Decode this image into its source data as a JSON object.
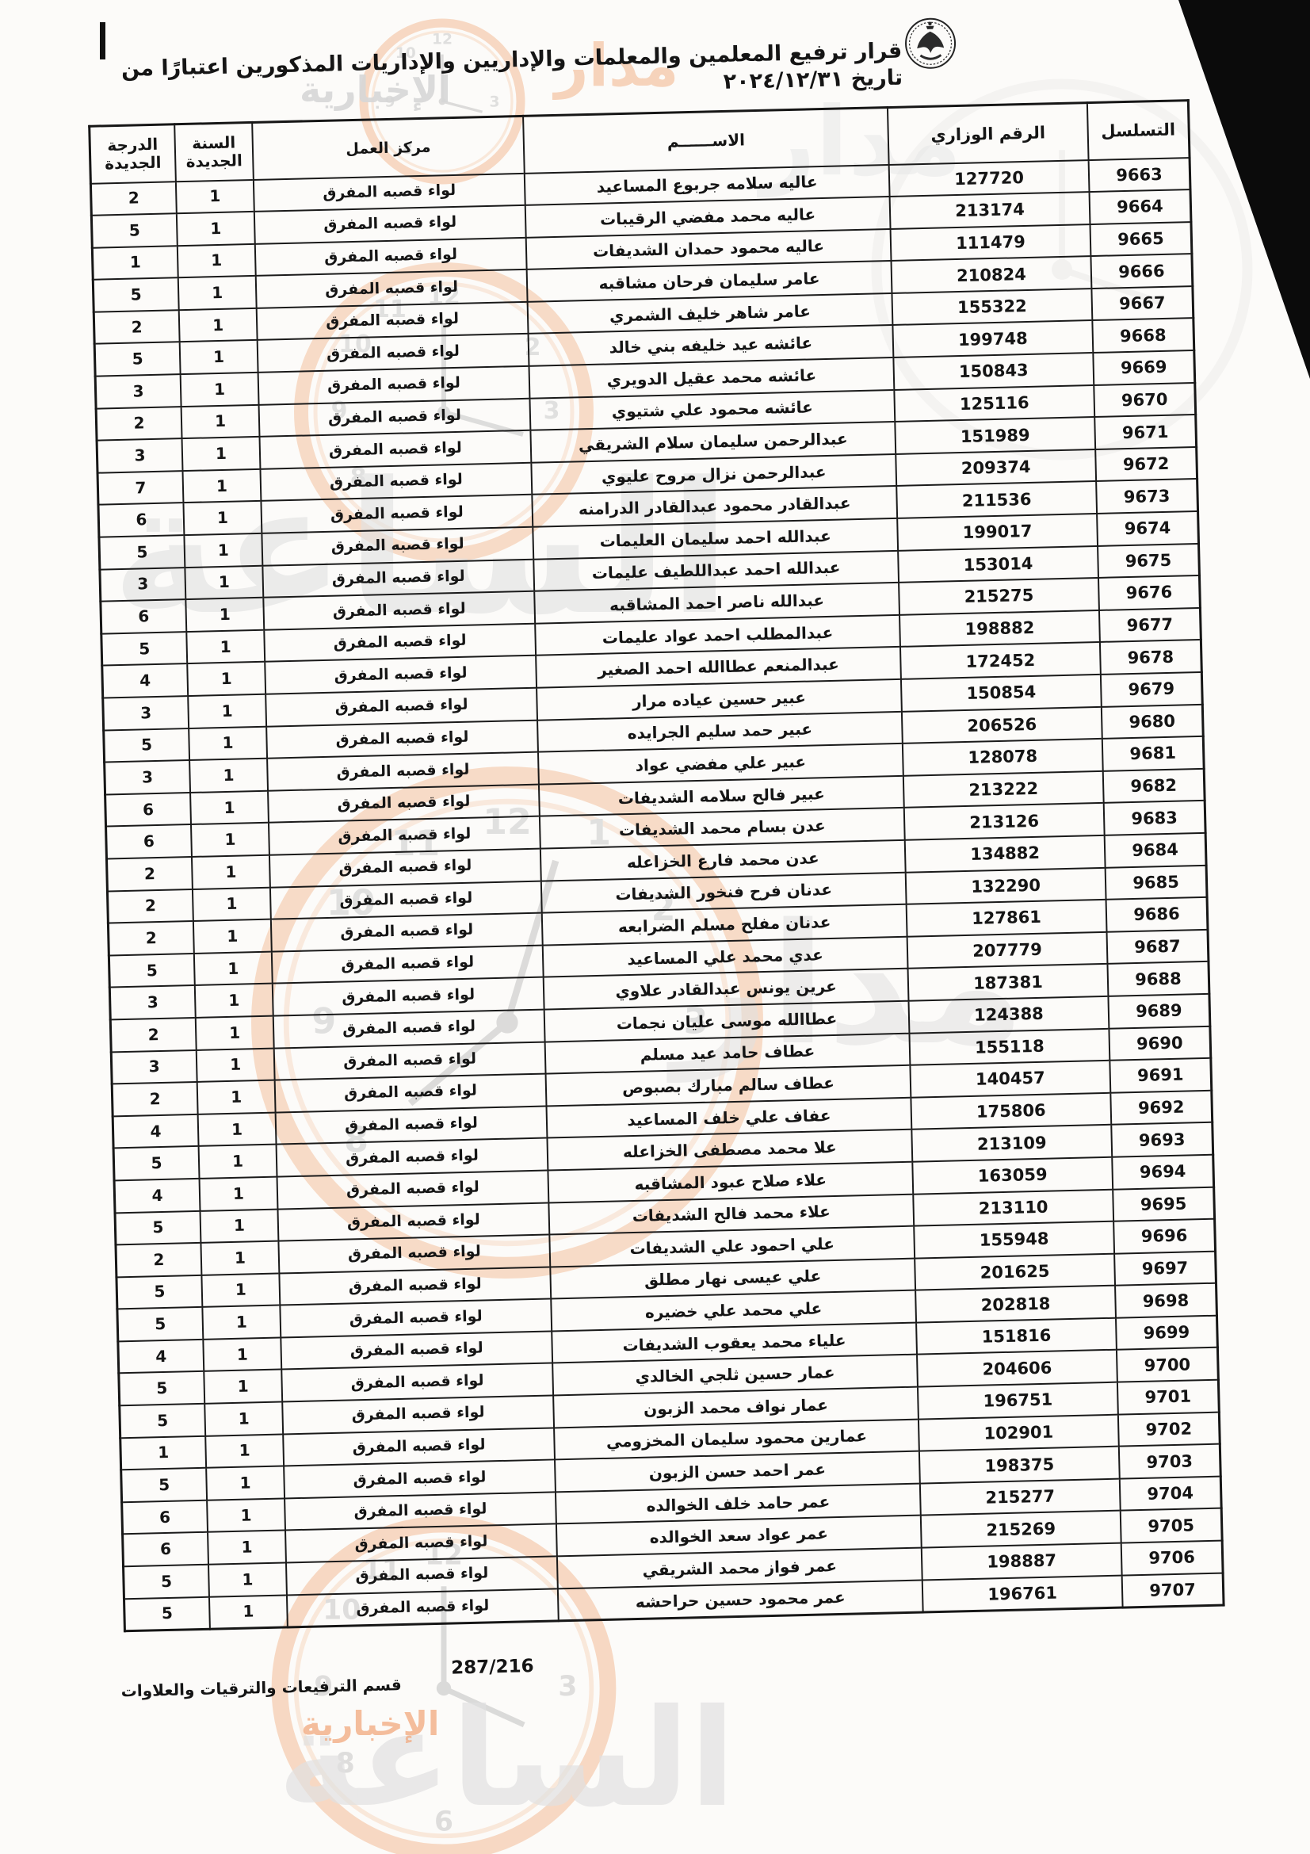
{
  "document": {
    "title": "قرار ترفيع المعلمين والمعلمات والإداريين والإداريات المذكورين اعتبارًا من تاريخ ٢٠٢٤/١٢/٣١",
    "logo": "jordan-coat-of-arms-stamp",
    "footer": {
      "department": "قسم الترفيعات والترقيات والعلاوات",
      "page_number": "287/216"
    },
    "watermark": {
      "brand": "مدار الساعة",
      "secondary": "الإخبارية",
      "brand_word1": "مدار",
      "brand_word2": "الساعة"
    },
    "colors": {
      "watermark_orange": "#f3bd97",
      "watermark_gray": "#dedede",
      "ink": "#151515"
    }
  },
  "table": {
    "headers": {
      "serial": "التسلسل",
      "ministry_number": "الرقم الوزاري",
      "name": "الاســــــم",
      "work_center": "مركز العمل",
      "new_year_line1": "السنة",
      "new_year_line2": "الجديدة",
      "new_grade_line1": "الدرجة",
      "new_grade_line2": "الجديدة"
    },
    "rows": [
      {
        "serial": "9663",
        "ministry": "127720",
        "name": "عاليه سلامه جربوع المساعيد",
        "center": "لواء قصبه المفرق",
        "year": "1",
        "grade": "2"
      },
      {
        "serial": "9664",
        "ministry": "213174",
        "name": "عاليه محمد مفضي الرقيبات",
        "center": "لواء قصبه المفرق",
        "year": "1",
        "grade": "5"
      },
      {
        "serial": "9665",
        "ministry": "111479",
        "name": "عاليه محمود حمدان الشديفات",
        "center": "لواء قصبه المفرق",
        "year": "1",
        "grade": "1"
      },
      {
        "serial": "9666",
        "ministry": "210824",
        "name": "عامر سليمان فرحان مشاقبه",
        "center": "لواء قصبه المفرق",
        "year": "1",
        "grade": "5"
      },
      {
        "serial": "9667",
        "ministry": "155322",
        "name": "عامر شاهر خليف الشمري",
        "center": "لواء قصبه المفرق",
        "year": "1",
        "grade": "2"
      },
      {
        "serial": "9668",
        "ministry": "199748",
        "name": "عائشه عيد خليفه بني خالد",
        "center": "لواء قصبه المفرق",
        "year": "1",
        "grade": "5"
      },
      {
        "serial": "9669",
        "ministry": "150843",
        "name": "عائشه محمد عقيل الدويري",
        "center": "لواء قصبه المفرق",
        "year": "1",
        "grade": "3"
      },
      {
        "serial": "9670",
        "ministry": "125116",
        "name": "عائشه محمود علي شتيوي",
        "center": "لواء قصبه المفرق",
        "year": "1",
        "grade": "2"
      },
      {
        "serial": "9671",
        "ministry": "151989",
        "name": "عبدالرحمن سليمان سلام الشريقي",
        "center": "لواء قصبه المفرق",
        "year": "1",
        "grade": "3"
      },
      {
        "serial": "9672",
        "ministry": "209374",
        "name": "عبدالرحمن نزال مروح عليوي",
        "center": "لواء قصبه المفرق",
        "year": "1",
        "grade": "7"
      },
      {
        "serial": "9673",
        "ministry": "211536",
        "name": "عبدالقادر محمود عبدالقادر الدرامنه",
        "center": "لواء قصبه المفرق",
        "year": "1",
        "grade": "6"
      },
      {
        "serial": "9674",
        "ministry": "199017",
        "name": "عبدالله احمد سليمان العليمات",
        "center": "لواء قصبه المفرق",
        "year": "1",
        "grade": "5"
      },
      {
        "serial": "9675",
        "ministry": "153014",
        "name": "عبدالله احمد عبداللطيف عليمات",
        "center": "لواء قصبه المفرق",
        "year": "1",
        "grade": "3"
      },
      {
        "serial": "9676",
        "ministry": "215275",
        "name": "عبدالله ناصر احمد المشاقبه",
        "center": "لواء قصبه المفرق",
        "year": "1",
        "grade": "6"
      },
      {
        "serial": "9677",
        "ministry": "198882",
        "name": "عبدالمطلب احمد عواد عليمات",
        "center": "لواء قصبه المفرق",
        "year": "1",
        "grade": "5"
      },
      {
        "serial": "9678",
        "ministry": "172452",
        "name": "عبدالمنعم عطاالله احمد الصغير",
        "center": "لواء قصبه المفرق",
        "year": "1",
        "grade": "4"
      },
      {
        "serial": "9679",
        "ministry": "150854",
        "name": "عبير حسين عياده مرار",
        "center": "لواء قصبه المفرق",
        "year": "1",
        "grade": "3"
      },
      {
        "serial": "9680",
        "ministry": "206526",
        "name": "عبير حمد سليم الجرايده",
        "center": "لواء قصبه المفرق",
        "year": "1",
        "grade": "5"
      },
      {
        "serial": "9681",
        "ministry": "128078",
        "name": "عبير علي مفضي عواد",
        "center": "لواء قصبه المفرق",
        "year": "1",
        "grade": "3"
      },
      {
        "serial": "9682",
        "ministry": "213222",
        "name": "عبير فالح سلامه الشديفات",
        "center": "لواء قصبه المفرق",
        "year": "1",
        "grade": "6"
      },
      {
        "serial": "9683",
        "ministry": "213126",
        "name": "عدن بسام محمد الشديفات",
        "center": "لواء قصبه المفرق",
        "year": "1",
        "grade": "6"
      },
      {
        "serial": "9684",
        "ministry": "134882",
        "name": "عدن محمد فارع الخزاعله",
        "center": "لواء قصبه المفرق",
        "year": "1",
        "grade": "2"
      },
      {
        "serial": "9685",
        "ministry": "132290",
        "name": "عدنان فرح فنخور الشديفات",
        "center": "لواء قصبه المفرق",
        "year": "1",
        "grade": "2"
      },
      {
        "serial": "9686",
        "ministry": "127861",
        "name": "عدنان مفلح مسلم الضرابعه",
        "center": "لواء قصبه المفرق",
        "year": "1",
        "grade": "2"
      },
      {
        "serial": "9687",
        "ministry": "207779",
        "name": "عدي محمد علي المساعيد",
        "center": "لواء قصبه المفرق",
        "year": "1",
        "grade": "5"
      },
      {
        "serial": "9688",
        "ministry": "187381",
        "name": "عرين يونس عبدالقادر علاوي",
        "center": "لواء قصبه المفرق",
        "year": "1",
        "grade": "3"
      },
      {
        "serial": "9689",
        "ministry": "124388",
        "name": "عطاالله موسى عليان نجمات",
        "center": "لواء قصبه المفرق",
        "year": "1",
        "grade": "2"
      },
      {
        "serial": "9690",
        "ministry": "155118",
        "name": "عطاف حامد عيد مسلم",
        "center": "لواء قصبه المفرق",
        "year": "1",
        "grade": "3"
      },
      {
        "serial": "9691",
        "ministry": "140457",
        "name": "عطاف سالم مبارك بصبوص",
        "center": "لواء قصبه المفرق",
        "year": "1",
        "grade": "2"
      },
      {
        "serial": "9692",
        "ministry": "175806",
        "name": "عفاف علي خلف المساعيد",
        "center": "لواء قصبه المفرق",
        "year": "1",
        "grade": "4"
      },
      {
        "serial": "9693",
        "ministry": "213109",
        "name": "علا محمد مصطفى الخزاعله",
        "center": "لواء قصبه المفرق",
        "year": "1",
        "grade": "5"
      },
      {
        "serial": "9694",
        "ministry": "163059",
        "name": "علاء صلاح عبود المشاقبه",
        "center": "لواء قصبه المفرق",
        "year": "1",
        "grade": "4"
      },
      {
        "serial": "9695",
        "ministry": "213110",
        "name": "علاء محمد فالح الشديفات",
        "center": "لواء قصبه المفرق",
        "year": "1",
        "grade": "5"
      },
      {
        "serial": "9696",
        "ministry": "155948",
        "name": "علي احمود علي الشديفات",
        "center": "لواء قصبه المفرق",
        "year": "1",
        "grade": "2"
      },
      {
        "serial": "9697",
        "ministry": "201625",
        "name": "علي عيسى نهار مطلق",
        "center": "لواء قصبه المفرق",
        "year": "1",
        "grade": "5"
      },
      {
        "serial": "9698",
        "ministry": "202818",
        "name": "علي محمد علي خضيره",
        "center": "لواء قصبه المفرق",
        "year": "1",
        "grade": "5"
      },
      {
        "serial": "9699",
        "ministry": "151816",
        "name": "علياء محمد يعقوب الشديفات",
        "center": "لواء قصبه المفرق",
        "year": "1",
        "grade": "4"
      },
      {
        "serial": "9700",
        "ministry": "204606",
        "name": "عمار حسين ثلجي الخالدي",
        "center": "لواء قصبه المفرق",
        "year": "1",
        "grade": "5"
      },
      {
        "serial": "9701",
        "ministry": "196751",
        "name": "عمار نواف محمد الزبون",
        "center": "لواء قصبه المفرق",
        "year": "1",
        "grade": "5"
      },
      {
        "serial": "9702",
        "ministry": "102901",
        "name": "عمارين محمود سليمان المخزومي",
        "center": "لواء قصبه المفرق",
        "year": "1",
        "grade": "1"
      },
      {
        "serial": "9703",
        "ministry": "198375",
        "name": "عمر احمد حسن الزبون",
        "center": "لواء قصبه المفرق",
        "year": "1",
        "grade": "5"
      },
      {
        "serial": "9704",
        "ministry": "215277",
        "name": "عمر حامد خلف الخوالده",
        "center": "لواء قصبه المفرق",
        "year": "1",
        "grade": "6"
      },
      {
        "serial": "9705",
        "ministry": "215269",
        "name": "عمر عواد سعد الخوالده",
        "center": "لواء قصبه المفرق",
        "year": "1",
        "grade": "6"
      },
      {
        "serial": "9706",
        "ministry": "198887",
        "name": "عمر فواز محمد الشريقي",
        "center": "لواء قصبه المفرق",
        "year": "1",
        "grade": "5"
      },
      {
        "serial": "9707",
        "ministry": "196761",
        "name": "عمر محمود حسين حراحشه",
        "center": "لواء قصبه المفرق",
        "year": "1",
        "grade": "5"
      }
    ]
  }
}
